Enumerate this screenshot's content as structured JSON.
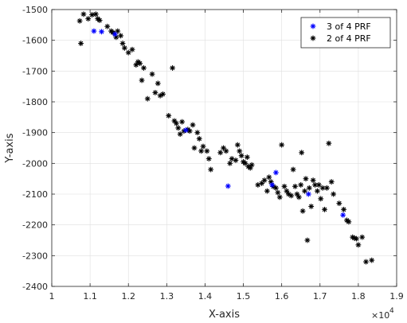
{
  "chart_data": {
    "type": "scatter",
    "title": "",
    "xlabel": "X-axis",
    "ylabel": "Y-axis",
    "x_multiplier_label": "×10",
    "x_multiplier_exponent": "4",
    "xlim": [
      1.0,
      1.9
    ],
    "ylim": [
      -2400,
      -1500
    ],
    "x_ticks": [
      1,
      1.1,
      1.2,
      1.3,
      1.4,
      1.5,
      1.6,
      1.7,
      1.8,
      1.9
    ],
    "x_tick_labels": [
      "1",
      "1.1",
      "1.2",
      "1.3",
      "1.4",
      "1.5",
      "1.6",
      "1.7",
      "1.8",
      "1.9"
    ],
    "y_ticks": [
      -1500,
      -1600,
      -1700,
      -1800,
      -1900,
      -2000,
      -2100,
      -2200,
      -2300,
      -2400
    ],
    "y_tick_labels": [
      "-1500",
      "-1600",
      "-1700",
      "-1800",
      "-1900",
      "-2000",
      "-2100",
      "-2200",
      "-2300",
      "-2400"
    ],
    "grid": true,
    "legend_position": "top-right",
    "series": [
      {
        "name": "3 of 4 PRF",
        "color": "#0000ff",
        "marker": "asterisk",
        "points": [
          [
            1.11,
            -1570
          ],
          [
            1.13,
            -1572
          ],
          [
            1.165,
            -1580
          ],
          [
            1.35,
            -1892
          ],
          [
            1.46,
            -2074
          ],
          [
            1.575,
            -2070
          ],
          [
            1.585,
            -2030
          ],
          [
            1.67,
            -2100
          ],
          [
            1.76,
            -2168
          ]
        ]
      },
      {
        "name": "2 of 4 PRF",
        "color": "#000000",
        "marker": "asterisk",
        "points": [
          [
            1.073,
            -1537
          ],
          [
            1.076,
            -1610
          ],
          [
            1.083,
            -1515
          ],
          [
            1.095,
            -1530
          ],
          [
            1.105,
            -1517
          ],
          [
            1.115,
            -1515
          ],
          [
            1.12,
            -1530
          ],
          [
            1.125,
            -1535
          ],
          [
            1.145,
            -1555
          ],
          [
            1.155,
            -1570
          ],
          [
            1.16,
            -1575
          ],
          [
            1.168,
            -1590
          ],
          [
            1.172,
            -1570
          ],
          [
            1.18,
            -1585
          ],
          [
            1.185,
            -1610
          ],
          [
            1.19,
            -1625
          ],
          [
            1.2,
            -1640
          ],
          [
            1.21,
            -1630
          ],
          [
            1.22,
            -1680
          ],
          [
            1.225,
            -1670
          ],
          [
            1.23,
            -1675
          ],
          [
            1.235,
            -1730
          ],
          [
            1.24,
            -1690
          ],
          [
            1.25,
            -1790
          ],
          [
            1.262,
            -1710
          ],
          [
            1.27,
            -1770
          ],
          [
            1.277,
            -1740
          ],
          [
            1.283,
            -1780
          ],
          [
            1.29,
            -1775
          ],
          [
            1.305,
            -1845
          ],
          [
            1.315,
            -1690
          ],
          [
            1.32,
            -1862
          ],
          [
            1.325,
            -1870
          ],
          [
            1.33,
            -1885
          ],
          [
            1.335,
            -1905
          ],
          [
            1.34,
            -1865
          ],
          [
            1.345,
            -1895
          ],
          [
            1.355,
            -1890
          ],
          [
            1.36,
            -1895
          ],
          [
            1.368,
            -1875
          ],
          [
            1.372,
            -1950
          ],
          [
            1.38,
            -1900
          ],
          [
            1.385,
            -1920
          ],
          [
            1.39,
            -1960
          ],
          [
            1.395,
            -1945
          ],
          [
            1.405,
            -1960
          ],
          [
            1.41,
            -1985
          ],
          [
            1.415,
            -2020
          ],
          [
            1.44,
            -1965
          ],
          [
            1.448,
            -1950
          ],
          [
            1.455,
            -1960
          ],
          [
            1.465,
            -2000
          ],
          [
            1.47,
            -1985
          ],
          [
            1.48,
            -1990
          ],
          [
            1.485,
            -1940
          ],
          [
            1.49,
            -1960
          ],
          [
            1.495,
            -1975
          ],
          [
            1.5,
            -1995
          ],
          [
            1.505,
            -2000
          ],
          [
            1.51,
            -1980
          ],
          [
            1.513,
            -2010
          ],
          [
            1.518,
            -2015
          ],
          [
            1.522,
            -2005
          ],
          [
            1.538,
            -2070
          ],
          [
            1.548,
            -2065
          ],
          [
            1.555,
            -2055
          ],
          [
            1.562,
            -2090
          ],
          [
            1.567,
            -2045
          ],
          [
            1.572,
            -2060
          ],
          [
            1.578,
            -2075
          ],
          [
            1.585,
            -2080
          ],
          [
            1.59,
            -2095
          ],
          [
            1.595,
            -2110
          ],
          [
            1.6,
            -1940
          ],
          [
            1.607,
            -2075
          ],
          [
            1.613,
            -2090
          ],
          [
            1.618,
            -2100
          ],
          [
            1.625,
            -2105
          ],
          [
            1.63,
            -2020
          ],
          [
            1.635,
            -2075
          ],
          [
            1.64,
            -2100
          ],
          [
            1.645,
            -2110
          ],
          [
            1.65,
            -2070
          ],
          [
            1.652,
            -1965
          ],
          [
            1.655,
            -2155
          ],
          [
            1.66,
            -2090
          ],
          [
            1.663,
            -2050
          ],
          [
            1.667,
            -2250
          ],
          [
            1.672,
            -2080
          ],
          [
            1.677,
            -2140
          ],
          [
            1.682,
            -2055
          ],
          [
            1.687,
            -2070
          ],
          [
            1.693,
            -2090
          ],
          [
            1.697,
            -2070
          ],
          [
            1.702,
            -2115
          ],
          [
            1.707,
            -2080
          ],
          [
            1.712,
            -2150
          ],
          [
            1.718,
            -2080
          ],
          [
            1.723,
            -1935
          ],
          [
            1.73,
            -2060
          ],
          [
            1.735,
            -2100
          ],
          [
            1.75,
            -2130
          ],
          [
            1.762,
            -2150
          ],
          [
            1.77,
            -2185
          ],
          [
            1.775,
            -2190
          ],
          [
            1.785,
            -2240
          ],
          [
            1.79,
            -2243
          ],
          [
            1.795,
            -2245
          ],
          [
            1.8,
            -2265
          ],
          [
            1.81,
            -2240
          ],
          [
            1.82,
            -2320
          ],
          [
            1.835,
            -2315
          ]
        ]
      }
    ]
  }
}
